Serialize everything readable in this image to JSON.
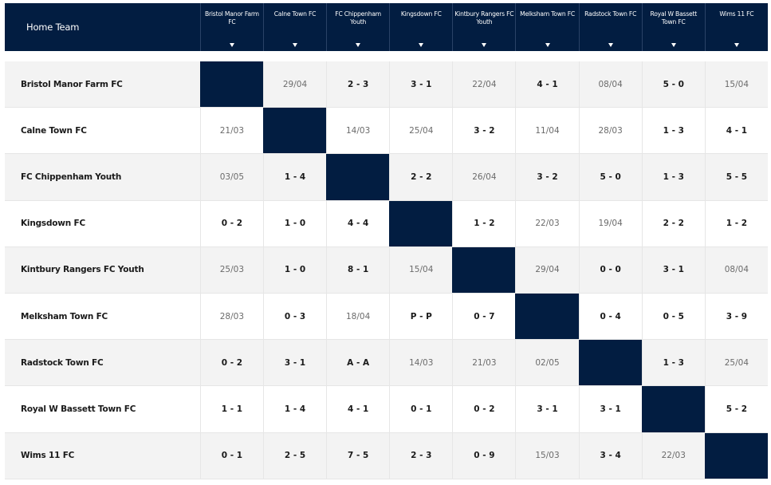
{
  "header": {
    "home_team_label": "Home Team"
  },
  "colors": {
    "header_bg": "#021d41",
    "self_cell": "#021d41",
    "row_alt": "#f3f3f3"
  },
  "columns": [
    "Bristol Manor Farm FC",
    "Calne Town FC",
    "FC Chippenham Youth",
    "Kingsdown FC",
    "Kintbury Rangers FC Youth",
    "Melksham Town FC",
    "Radstock Town FC",
    "Royal W Bassett Town FC",
    "Wims 11 FC"
  ],
  "rows": [
    {
      "team": "Bristol Manor Farm FC",
      "cells": [
        "",
        "29/04",
        "2 - 3",
        "3 - 1",
        "22/04",
        "4 - 1",
        "08/04",
        "5 - 0",
        "15/04"
      ]
    },
    {
      "team": "Calne Town FC",
      "cells": [
        "21/03",
        "",
        "14/03",
        "25/04",
        "3 - 2",
        "11/04",
        "28/03",
        "1 - 3",
        "4 - 1"
      ]
    },
    {
      "team": "FC Chippenham Youth",
      "cells": [
        "03/05",
        "1 - 4",
        "",
        "2 - 2",
        "26/04",
        "3 - 2",
        "5 - 0",
        "1 - 3",
        "5 - 5"
      ]
    },
    {
      "team": "Kingsdown FC",
      "cells": [
        "0 - 2",
        "1 - 0",
        "4 - 4",
        "",
        "1 - 2",
        "22/03",
        "19/04",
        "2 - 2",
        "1 - 2"
      ]
    },
    {
      "team": "Kintbury Rangers FC Youth",
      "cells": [
        "25/03",
        "1 - 0",
        "8 - 1",
        "15/04",
        "",
        "29/04",
        "0 - 0",
        "3 - 1",
        "08/04"
      ]
    },
    {
      "team": "Melksham Town FC",
      "cells": [
        "28/03",
        "0 - 3",
        "18/04",
        "P - P",
        "0 - 7",
        "",
        "0 - 4",
        "0 - 5",
        "3 - 9"
      ]
    },
    {
      "team": "Radstock Town FC",
      "cells": [
        "0 - 2",
        "3 - 1",
        "A - A",
        "14/03",
        "21/03",
        "02/05",
        "",
        "1 - 3",
        "25/04"
      ]
    },
    {
      "team": "Royal W Bassett Town FC",
      "cells": [
        "1 - 1",
        "1 - 4",
        "4 - 1",
        "0 - 1",
        "0 - 2",
        "3 - 1",
        "3 - 1",
        "",
        "5 - 2"
      ]
    },
    {
      "team": "Wims 11 FC",
      "cells": [
        "0 - 1",
        "2 - 5",
        "7 - 5",
        "2 - 3",
        "0 - 9",
        "15/03",
        "3 - 4",
        "22/03",
        ""
      ]
    }
  ]
}
